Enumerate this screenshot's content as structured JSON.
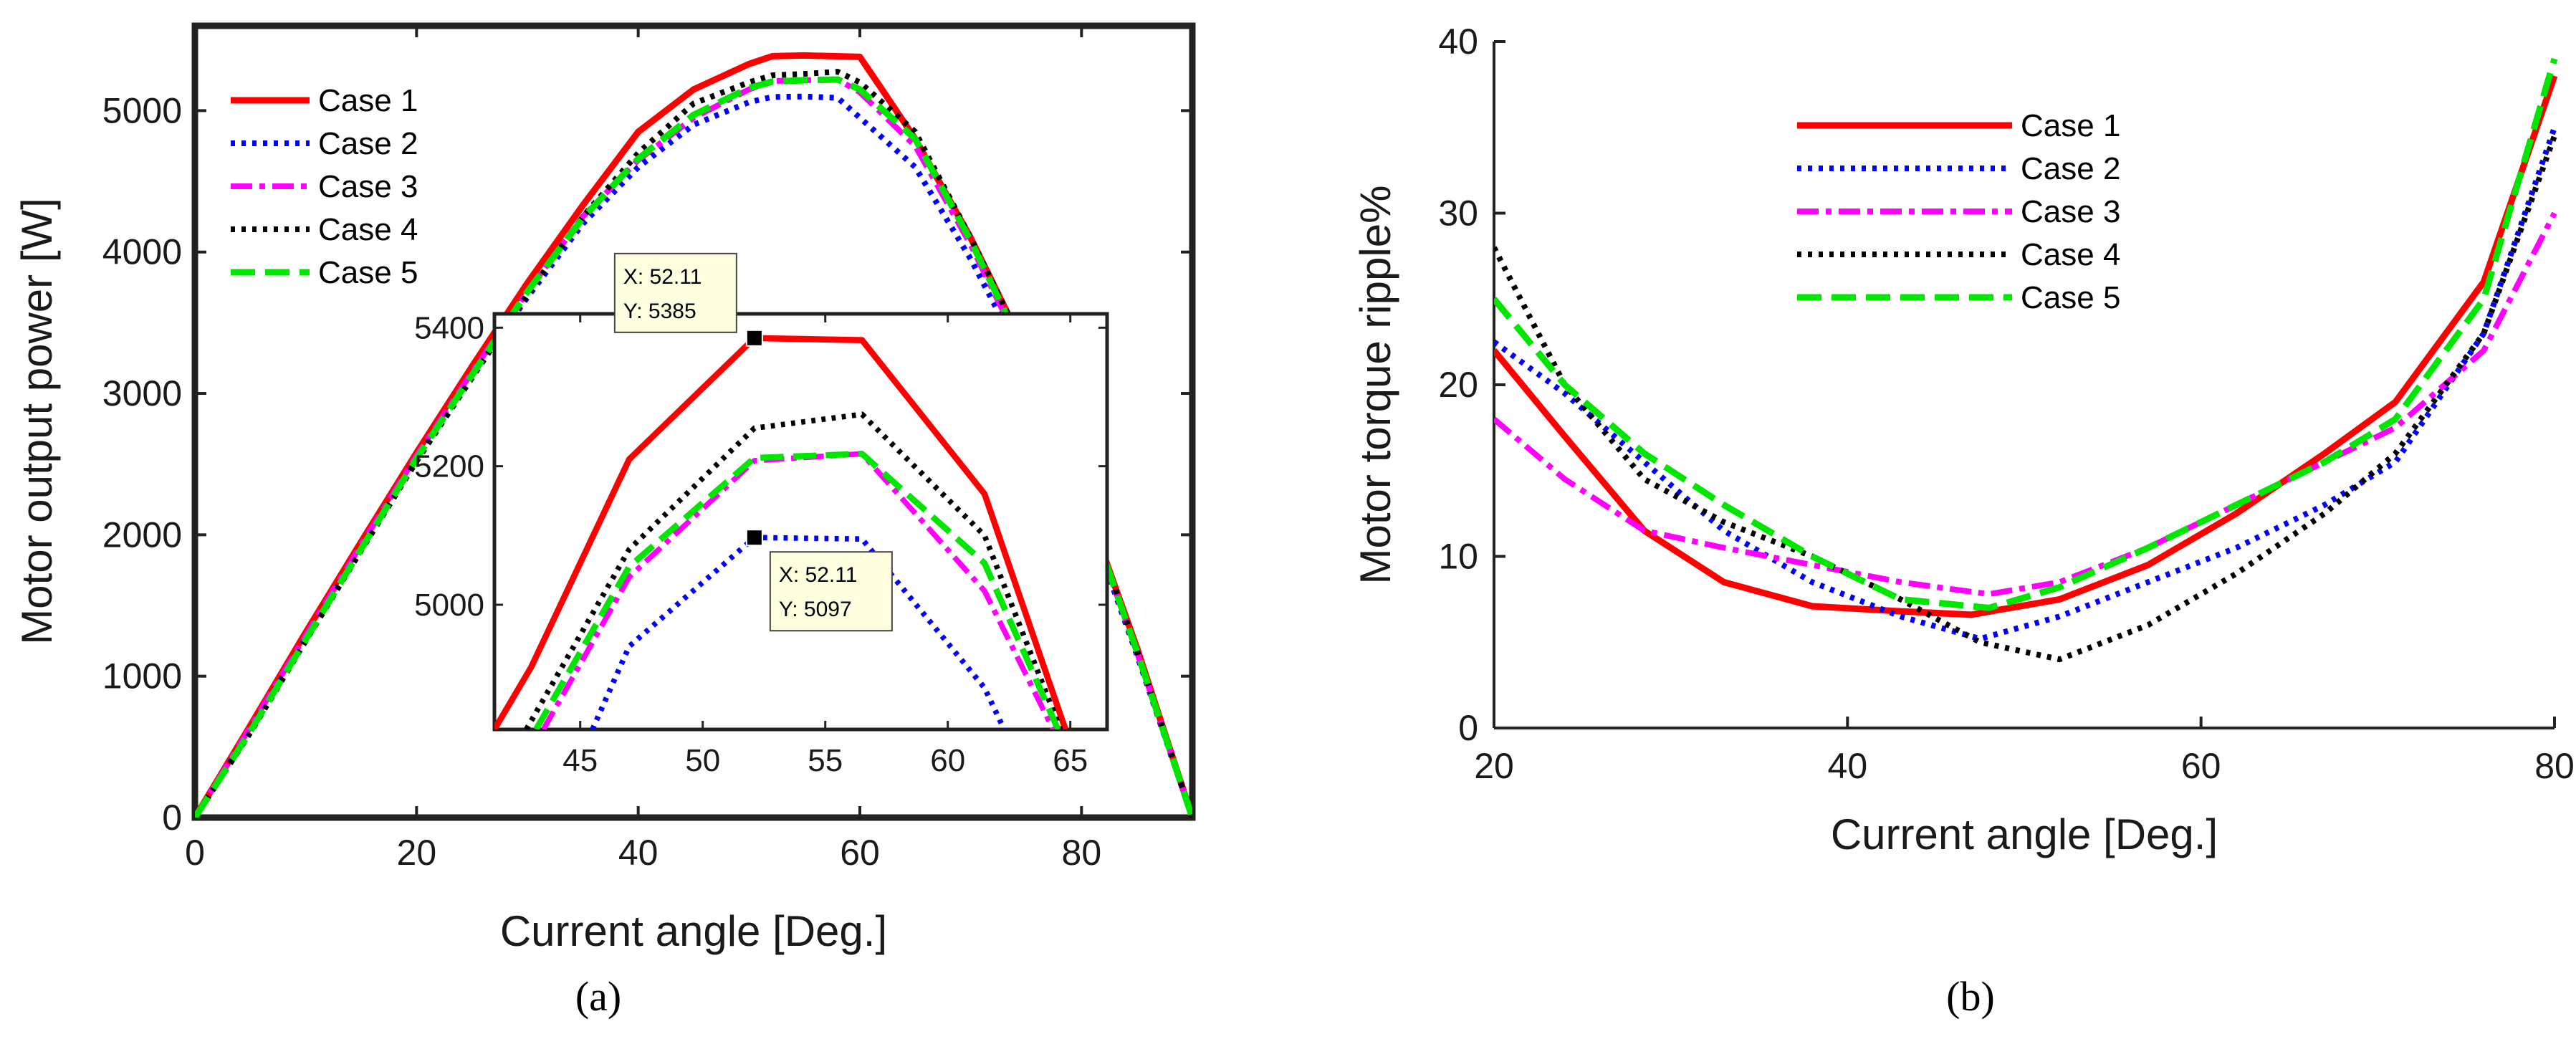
{
  "figure": {
    "captions": {
      "a": "(a)",
      "b": "(b)"
    }
  },
  "chart_data": [
    {
      "id": "a",
      "type": "line",
      "xlabel": "Current angle [Deg.]",
      "ylabel": "Motor output power [W]",
      "xlim": [
        0,
        90
      ],
      "ylim": [
        0,
        5600
      ],
      "xticks": [
        "0",
        "20",
        "40",
        "60",
        "80"
      ],
      "yticks": [
        "0",
        "1000",
        "2000",
        "3000",
        "4000",
        "5000"
      ],
      "legend_position": "top-left",
      "series": [
        {
          "name": "Case 1",
          "color": "#ff0000",
          "style": "solid",
          "points": [
            [
              0,
              0
            ],
            [
              5,
              650
            ],
            [
              10,
              1310
            ],
            [
              15,
              1950
            ],
            [
              20,
              2580
            ],
            [
              25,
              3190
            ],
            [
              30,
              3780
            ],
            [
              35,
              4330
            ],
            [
              40,
              4850
            ],
            [
              45,
              5150
            ],
            [
              50,
              5330
            ],
            [
              52.11,
              5385
            ],
            [
              55,
              5390
            ],
            [
              60,
              5380
            ],
            [
              62,
              5150
            ],
            [
              65,
              4800
            ],
            [
              70,
              4100
            ],
            [
              75,
              3300
            ],
            [
              80,
              2300
            ],
            [
              85,
              1200
            ],
            [
              90,
              0
            ]
          ]
        },
        {
          "name": "Case 2",
          "color": "#0000ff",
          "style": "dotted",
          "points": [
            [
              0,
              0
            ],
            [
              5,
              620
            ],
            [
              10,
              1270
            ],
            [
              15,
              1900
            ],
            [
              20,
              2530
            ],
            [
              25,
              3120
            ],
            [
              30,
              3680
            ],
            [
              35,
              4200
            ],
            [
              40,
              4600
            ],
            [
              45,
              4900
            ],
            [
              50,
              5060
            ],
            [
              52.11,
              5097
            ],
            [
              55,
              5100
            ],
            [
              58,
              5090
            ],
            [
              60,
              4950
            ],
            [
              65,
              4600
            ],
            [
              70,
              3950
            ],
            [
              75,
              3200
            ],
            [
              80,
              2250
            ],
            [
              85,
              1150
            ],
            [
              90,
              0
            ]
          ]
        },
        {
          "name": "Case 3",
          "color": "#ff00ff",
          "style": "dashdot",
          "points": [
            [
              0,
              0
            ],
            [
              5,
              640
            ],
            [
              10,
              1290
            ],
            [
              15,
              1930
            ],
            [
              20,
              2560
            ],
            [
              25,
              3150
            ],
            [
              30,
              3720
            ],
            [
              35,
              4250
            ],
            [
              40,
              4650
            ],
            [
              45,
              4950
            ],
            [
              50,
              5150
            ],
            [
              52.11,
              5210
            ],
            [
              55,
              5215
            ],
            [
              58,
              5220
            ],
            [
              60,
              5130
            ],
            [
              65,
              4750
            ],
            [
              70,
              4050
            ],
            [
              75,
              3250
            ],
            [
              80,
              2280
            ],
            [
              85,
              1170
            ],
            [
              90,
              0
            ]
          ]
        },
        {
          "name": "Case 4",
          "color": "#000000",
          "style": "dotted",
          "points": [
            [
              0,
              0
            ],
            [
              5,
              600
            ],
            [
              10,
              1250
            ],
            [
              15,
              1890
            ],
            [
              20,
              2520
            ],
            [
              25,
              3110
            ],
            [
              30,
              3700
            ],
            [
              35,
              4250
            ],
            [
              40,
              4700
            ],
            [
              45,
              5050
            ],
            [
              50,
              5200
            ],
            [
              52.11,
              5250
            ],
            [
              55,
              5260
            ],
            [
              58,
              5275
            ],
            [
              60,
              5200
            ],
            [
              65,
              4850
            ],
            [
              70,
              4100
            ],
            [
              75,
              3300
            ],
            [
              80,
              2300
            ],
            [
              85,
              1180
            ],
            [
              90,
              0
            ]
          ]
        },
        {
          "name": "Case 5",
          "color": "#00e600",
          "style": "dashed",
          "points": [
            [
              0,
              0
            ],
            [
              5,
              610
            ],
            [
              10,
              1260
            ],
            [
              15,
              1900
            ],
            [
              20,
              2540
            ],
            [
              25,
              3130
            ],
            [
              30,
              3720
            ],
            [
              35,
              4240
            ],
            [
              40,
              4660
            ],
            [
              45,
              4970
            ],
            [
              50,
              5160
            ],
            [
              52.11,
              5205
            ],
            [
              55,
              5215
            ],
            [
              58,
              5220
            ],
            [
              60,
              5150
            ],
            [
              65,
              4800
            ],
            [
              70,
              4080
            ],
            [
              75,
              3270
            ],
            [
              80,
              2290
            ],
            [
              85,
              1175
            ],
            [
              90,
              0
            ]
          ]
        }
      ],
      "inset": {
        "xlim": [
          41.5,
          66.5
        ],
        "ylim": [
          4820,
          5420
        ],
        "xticks": [
          "45",
          "50",
          "55",
          "60",
          "65"
        ],
        "yticks": [
          "5000",
          "5200",
          "5400"
        ],
        "series": [
          {
            "name": "Case 1",
            "points": [
              [
                41.5,
                4820
              ],
              [
                43,
                4910
              ],
              [
                47,
                5210
              ],
              [
                52.11,
                5385
              ],
              [
                56.5,
                5382
              ],
              [
                61.5,
                5160
              ],
              [
                64.8,
                4820
              ]
            ]
          },
          {
            "name": "Case 2",
            "points": [
              [
                45.5,
                4820
              ],
              [
                47,
                4940
              ],
              [
                52.11,
                5097
              ],
              [
                56.5,
                5095
              ],
              [
                61.5,
                4880
              ],
              [
                62.3,
                4820
              ]
            ]
          },
          {
            "name": "Case 3",
            "points": [
              [
                43.5,
                4820
              ],
              [
                47,
                5040
              ],
              [
                52.11,
                5208
              ],
              [
                56.5,
                5218
              ],
              [
                61.5,
                5020
              ],
              [
                64.3,
                4820
              ]
            ]
          },
          {
            "name": "Case 4",
            "points": [
              [
                42.8,
                4820
              ],
              [
                47,
                5080
              ],
              [
                52.11,
                5255
              ],
              [
                56.5,
                5275
              ],
              [
                61.5,
                5100
              ],
              [
                64.6,
                4820
              ]
            ]
          },
          {
            "name": "Case 5",
            "points": [
              [
                43.2,
                4820
              ],
              [
                47,
                5055
              ],
              [
                52.11,
                5212
              ],
              [
                56.5,
                5218
              ],
              [
                61.5,
                5060
              ],
              [
                64.5,
                4820
              ]
            ]
          }
        ],
        "datatips": [
          {
            "x_label": "X: 52.11",
            "y_label": "Y: 5385",
            "x": 52.11,
            "y": 5385
          },
          {
            "x_label": "X: 52.11",
            "y_label": "Y: 5097",
            "x": 52.11,
            "y": 5097
          }
        ]
      }
    },
    {
      "id": "b",
      "type": "line",
      "xlabel": "Current angle [Deg.]",
      "ylabel": "Motor torque ripple%",
      "xlim": [
        20,
        80
      ],
      "ylim": [
        0,
        40
      ],
      "xticks": [
        "20",
        "40",
        "60",
        "80"
      ],
      "yticks": [
        "0",
        "10",
        "20",
        "30",
        "40"
      ],
      "legend_position": "top-center",
      "series": [
        {
          "name": "Case 1",
          "color": "#ff0000",
          "style": "solid",
          "points": [
            [
              20,
              22
            ],
            [
              24,
              17
            ],
            [
              28.5,
              11.5
            ],
            [
              33,
              8.5
            ],
            [
              38,
              7.1
            ],
            [
              43,
              6.8
            ],
            [
              47,
              6.6
            ],
            [
              52,
              7.5
            ],
            [
              57,
              9.5
            ],
            [
              62,
              12.5
            ],
            [
              67,
              16
            ],
            [
              71,
              19
            ],
            [
              76,
              26
            ],
            [
              80,
              38
            ]
          ]
        },
        {
          "name": "Case 2",
          "color": "#0000ff",
          "style": "dotted",
          "points": [
            [
              20,
              22.5
            ],
            [
              24,
              19.5
            ],
            [
              28.5,
              15.5
            ],
            [
              33,
              11.5
            ],
            [
              38,
              8.5
            ],
            [
              43,
              6.5
            ],
            [
              47.5,
              5.2
            ],
            [
              52,
              6.5
            ],
            [
              57,
              8.5
            ],
            [
              62,
              10.5
            ],
            [
              67,
              13
            ],
            [
              71,
              15.5
            ],
            [
              76,
              23
            ],
            [
              80,
              35
            ]
          ]
        },
        {
          "name": "Case 3",
          "color": "#ff00ff",
          "style": "dashdot",
          "points": [
            [
              20,
              18
            ],
            [
              24,
              14.5
            ],
            [
              28.5,
              11.5
            ],
            [
              33,
              10.5
            ],
            [
              38,
              9.5
            ],
            [
              43,
              8.5
            ],
            [
              48,
              7.8
            ],
            [
              52,
              8.5
            ],
            [
              57,
              10.5
            ],
            [
              62,
              13
            ],
            [
              67,
              15.5
            ],
            [
              71,
              17.5
            ],
            [
              76,
              22
            ],
            [
              80,
              30
            ]
          ]
        },
        {
          "name": "Case 4",
          "color": "#000000",
          "style": "dotted",
          "points": [
            [
              20,
              28
            ],
            [
              24,
              20
            ],
            [
              28.5,
              14.5
            ],
            [
              33,
              12
            ],
            [
              38,
              10
            ],
            [
              43,
              7.5
            ],
            [
              47.5,
              5
            ],
            [
              52,
              4
            ],
            [
              57,
              6
            ],
            [
              62,
              9
            ],
            [
              67,
              12.5
            ],
            [
              71,
              16
            ],
            [
              76,
              23
            ],
            [
              80,
              34.5
            ]
          ]
        },
        {
          "name": "Case 5",
          "color": "#00e600",
          "style": "dashed",
          "points": [
            [
              20,
              25
            ],
            [
              24,
              20
            ],
            [
              28.5,
              16
            ],
            [
              33,
              13
            ],
            [
              38,
              10
            ],
            [
              43,
              7.5
            ],
            [
              48,
              7
            ],
            [
              52,
              8.2
            ],
            [
              57,
              10.5
            ],
            [
              62,
              13
            ],
            [
              67,
              15.5
            ],
            [
              71,
              18
            ],
            [
              76,
              25
            ],
            [
              80,
              39
            ]
          ]
        }
      ]
    }
  ]
}
